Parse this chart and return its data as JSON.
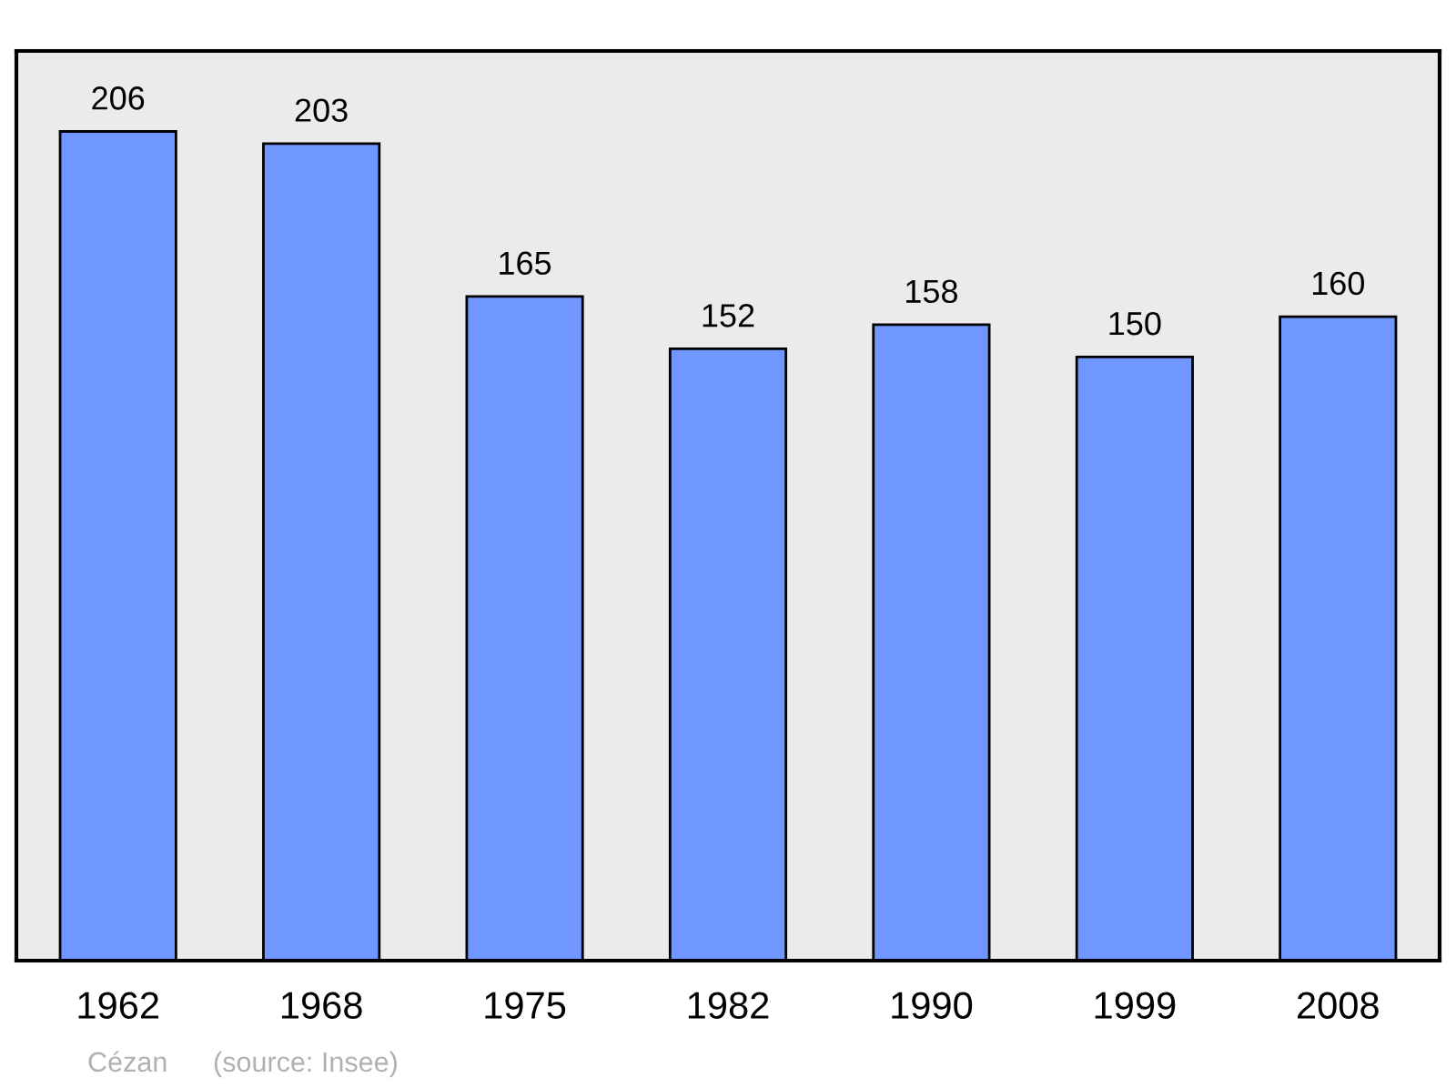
{
  "chart_data": {
    "type": "bar",
    "categories": [
      "1962",
      "1968",
      "1975",
      "1982",
      "1990",
      "1999",
      "2008"
    ],
    "values": [
      206,
      203,
      165,
      152,
      158,
      150,
      160
    ],
    "color": "#7097ff",
    "ylim": [
      0,
      226
    ],
    "tick_labels": "x",
    "data_labels": true,
    "grid": false,
    "legend": false,
    "annotations": [
      "Cézan",
      "(source: Insee)"
    ]
  }
}
